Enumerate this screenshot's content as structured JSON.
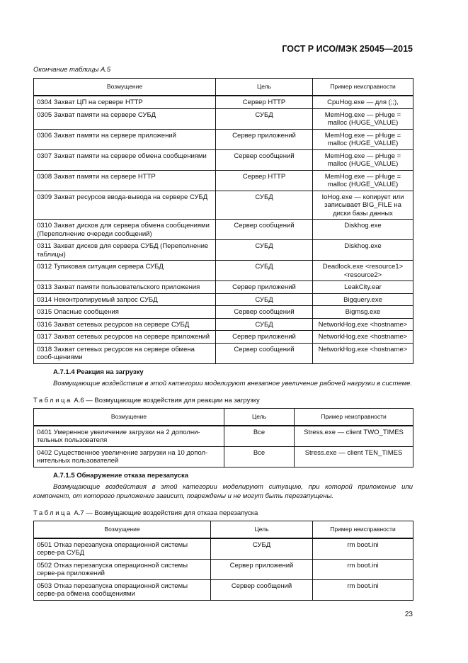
{
  "header": {
    "doc_code": "ГОСТ Р  ИСО/МЭК  25045—2015"
  },
  "table_a5": {
    "caption": "Окончание таблицы А.5",
    "columns": [
      "Возмущение",
      "Цель",
      "Пример неисправности"
    ],
    "rows": [
      [
        "0304  Захват ЦП на сервере HTTP",
        "Сервер HTTP",
        "CpuHog.exe — для (;;),"
      ],
      [
        "0305  Захват памяти на сервере СУБД",
        "СУБД",
        "MemHog.exe — pHuge = malloc (HUGE_VALUE)"
      ],
      [
        "0306   Захват памяти на сервере приложений",
        "Сервер приложений",
        "MemHog.exe — pHuge = malloc (HUGE_VALUE)"
      ],
      [
        "0307  Захват памяти на сервере обмена сообщениями",
        "Сервер сообщений",
        "MemHog.exe — pHuge = malloc (HUGE_VALUE)"
      ],
      [
        "0308  Захват памяти на сервере HTTP",
        "Сервер HTTP",
        "MemHog.exe — pHuge = malloc (HUGE_VALUE)"
      ],
      [
        "0309  Захват ресурсов ввода-вывода на сервере СУБД",
        "СУБД",
        "IoHog.exe — копирует или записывает BIG_FILE на диски базы данных"
      ],
      [
        "0310  Захват дисков для сервера обмена сообщениями (Переполнение очереди сообщений)",
        "Сервер сообщений",
        "Diskhog.exe"
      ],
      [
        "0311  Захват дисков для сервера СУБД (Переполнение таблицы)",
        "СУБД",
        "Diskhog.exe"
      ],
      [
        "0312  Тупиковая ситуация сервера СУБД",
        "СУБД",
        "Deadlock.exe <resource1> <resource2>"
      ],
      [
        "0313  Захват памяти пользовательского приложения",
        "Сервер приложений",
        "LeakCity.ear"
      ],
      [
        "0314  Неконтролируемый запрос СУБД",
        "СУБД",
        "Bigquery.exe"
      ],
      [
        "0315  Опасные сообщения",
        "Сервер сообщений",
        "Bigmsg.exe"
      ],
      [
        "0316  Захват сетевых ресурсов на сервере СУБД",
        "СУБД",
        "NetworkHog.exe <hostname>"
      ],
      [
        "0317  Захват сетевых ресурсов на сервере приложений",
        "Сервер приложений",
        "NetworkHog.exe <hostname>"
      ],
      [
        "0318  Захват сетевых ресурсов на сервере обмена сооб-щениями",
        "Сервер сообщений",
        "NetworkHog.exe <hostname>"
      ]
    ]
  },
  "section_a714": {
    "heading": "А.7.1.4  Реакция на загрузку",
    "text": "Возмущающие воздействия в этой категории моделируют внезапное увеличение рабочей нагрузки в системе."
  },
  "table_a6": {
    "caption_prefix": "Таблица",
    "caption": " А.6 — Возмущающие воздействия для реакции на загрузку",
    "columns": [
      "Возмущение",
      "Цель",
      "Пример неисправности"
    ],
    "rows": [
      [
        "0401  Умеренное увеличение загрузки на 2 дополни-тельных пользователя",
        "Все",
        "Stress.exe — client TWO_TIMES"
      ],
      [
        "0402  Существенное увеличение загрузки на 10 допол-нительных пользователей",
        "Все",
        "Stress.exe — client TEN_TIMES"
      ]
    ]
  },
  "section_a715": {
    "heading": "А.7.1.5  Обнаружение отказа перезапуска",
    "text": "Возмущающие воздействия в этой категории моделируют ситуацию, при которой приложение или компонент, от которого приложение зависит, повреждены и не могут быть перезапущены."
  },
  "table_a7": {
    "caption_prefix": "Таблица",
    "caption": "  А.7 — Возмущающие воздействия для отказа перезапуска",
    "columns": [
      "Возмущение",
      "Цель",
      "Пример неисправности"
    ],
    "rows": [
      [
        "0501 Отказ перезапуска операционной системы серве-ра СУБД",
        "СУБД",
        "rm boot.ini"
      ],
      [
        "0502 Отказ перезапуска операционной системы серве-ра приложений",
        "Сервер приложений",
        "rm boot.ini"
      ],
      [
        "0503 Отказ перезапуска операционной системы серве-ра обмена сообщениями",
        "Сервер сообщений",
        "rm boot.ini"
      ]
    ]
  },
  "footer": {
    "page_number": "23"
  }
}
